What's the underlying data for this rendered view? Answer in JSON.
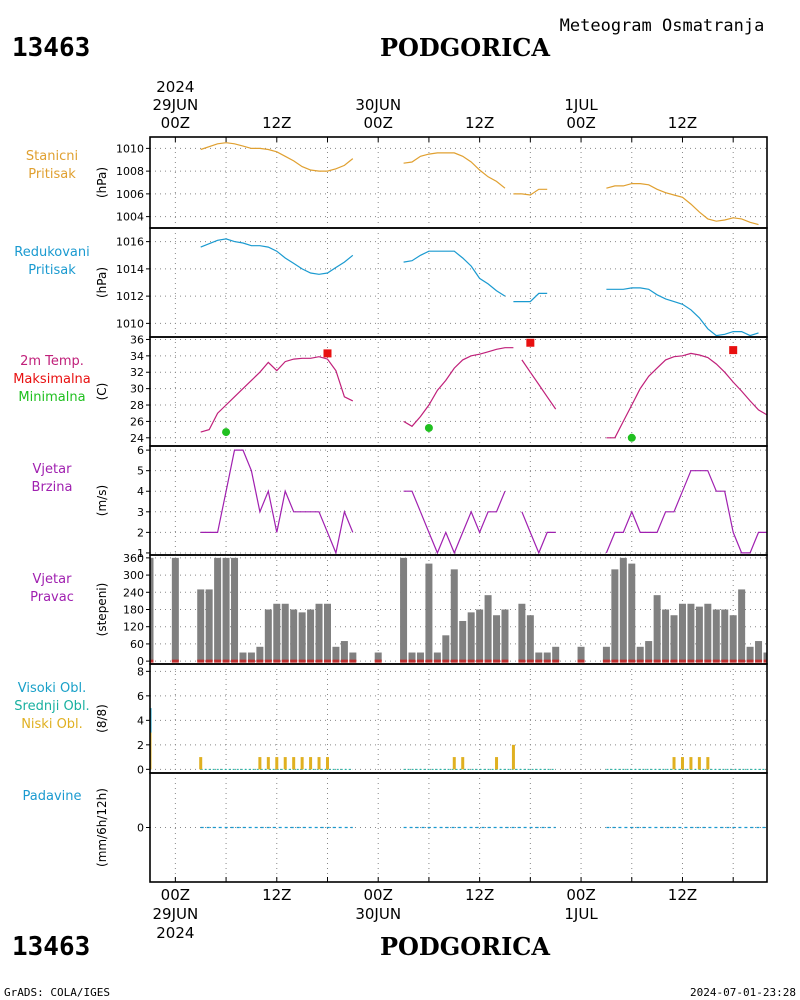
{
  "header": {
    "station_id": "13463",
    "station_name": "PODGORICA",
    "subtitle": "Meteogram Osmatranja"
  },
  "footer": {
    "credit": "GrADS: COLA/IGES",
    "timestamp": "2024-07-01-23:28"
  },
  "time_axis": {
    "year": "2024",
    "ticks": [
      {
        "t": 0,
        "hour": "00Z",
        "date": "29JUN"
      },
      {
        "t": 12,
        "hour": "12Z",
        "date": ""
      },
      {
        "t": 24,
        "hour": "00Z",
        "date": "30JUN"
      },
      {
        "t": 36,
        "hour": "12Z",
        "date": ""
      },
      {
        "t": 48,
        "hour": "00Z",
        "date": "1JUL"
      },
      {
        "t": 60,
        "hour": "12Z",
        "date": ""
      }
    ],
    "range_hours": [
      -3,
      70
    ]
  },
  "colors": {
    "station_pressure": "#e0a030",
    "reduced_pressure": "#1a9ad0",
    "temperature": "#c0207a",
    "tmax": "#e81010",
    "tmin": "#20c020",
    "wind": "#a020b0",
    "dir_bar": "#808080",
    "dir_base": "#c03030",
    "cloud_high": "#18a0c8",
    "cloud_mid": "#18b0a0",
    "cloud_low": "#e0b020",
    "precip": "#1a9ad0"
  },
  "chart_data": [
    {
      "id": "station_pressure",
      "type": "line",
      "label_lines": [
        "Stanicni",
        "Pritisak"
      ],
      "unit": "(hPa)",
      "yticks": [
        1004,
        1006,
        1008,
        1010
      ],
      "ylim": [
        1003,
        1011
      ],
      "series": [
        {
          "x": [
            3,
            5,
            6,
            7,
            8,
            9,
            10,
            11,
            12,
            13,
            14,
            15,
            16,
            17,
            18,
            19,
            20,
            21
          ],
          "y": [
            1009.9,
            1010.4,
            1010.5,
            1010.4,
            1010.2,
            1010.0,
            1010.0,
            1009.9,
            1009.7,
            1009.3,
            1008.9,
            1008.4,
            1008.1,
            1008.0,
            1008.0,
            1008.2,
            1008.5,
            1009.1
          ]
        },
        {
          "x": [
            27,
            28,
            29,
            30,
            31,
            32,
            33,
            34,
            35,
            36,
            37,
            38,
            39
          ],
          "y": [
            1008.7,
            1008.8,
            1009.3,
            1009.5,
            1009.6,
            1009.6,
            1009.6,
            1009.3,
            1008.8,
            1008.1,
            1007.5,
            1007.1,
            1006.5
          ]
        },
        {
          "x": [
            40,
            41,
            42,
            43,
            44
          ],
          "y": [
            1006.0,
            1006.0,
            1005.9,
            1006.4,
            1006.4
          ]
        },
        {
          "x": [
            51,
            52,
            53,
            54,
            55,
            56,
            57,
            58,
            59,
            60,
            61,
            62,
            63,
            64,
            65,
            66,
            67,
            68,
            69
          ],
          "y": [
            1006.5,
            1006.7,
            1006.7,
            1006.9,
            1006.9,
            1006.8,
            1006.4,
            1006.1,
            1005.9,
            1005.7,
            1005.1,
            1004.4,
            1003.8,
            1003.6,
            1003.7,
            1003.9,
            1003.8,
            1003.5,
            1003.3
          ]
        }
      ]
    },
    {
      "id": "reduced_pressure",
      "type": "line",
      "label_lines": [
        "Redukovani",
        "Pritisak"
      ],
      "unit": "(hPa)",
      "yticks": [
        1010,
        1012,
        1014,
        1016
      ],
      "ylim": [
        1009,
        1017
      ],
      "series": [
        {
          "x": [
            3,
            5,
            6,
            7,
            8,
            9,
            10,
            11,
            12,
            13,
            14,
            15,
            16,
            17,
            18,
            19,
            20,
            21
          ],
          "y": [
            1015.6,
            1016.1,
            1016.2,
            1016.0,
            1015.9,
            1015.7,
            1015.7,
            1015.6,
            1015.3,
            1014.8,
            1014.4,
            1014.0,
            1013.7,
            1013.6,
            1013.7,
            1014.1,
            1014.5,
            1015.0
          ]
        },
        {
          "x": [
            27,
            28,
            29,
            30,
            31,
            32,
            33,
            34,
            35,
            36,
            37,
            38,
            39
          ],
          "y": [
            1014.5,
            1014.6,
            1015.0,
            1015.3,
            1015.3,
            1015.3,
            1015.3,
            1014.8,
            1014.2,
            1013.3,
            1012.9,
            1012.4,
            1012.0
          ]
        },
        {
          "x": [
            40,
            41,
            42,
            43,
            44
          ],
          "y": [
            1011.6,
            1011.6,
            1011.6,
            1012.2,
            1012.2
          ]
        },
        {
          "x": [
            51,
            52,
            53,
            54,
            55,
            56,
            57,
            58,
            59,
            60,
            61,
            62,
            63,
            64,
            65,
            66,
            67,
            68,
            69
          ],
          "y": [
            1012.5,
            1012.5,
            1012.5,
            1012.6,
            1012.6,
            1012.5,
            1012.1,
            1011.8,
            1011.6,
            1011.4,
            1011.0,
            1010.4,
            1009.6,
            1009.1,
            1009.2,
            1009.4,
            1009.4,
            1009.1,
            1009.3
          ]
        }
      ]
    },
    {
      "id": "temperature",
      "type": "line",
      "label_lines": [
        "2m Temp.",
        "Maksimalna",
        "Minimalna"
      ],
      "unit": "(C)",
      "yticks": [
        24,
        26,
        28,
        30,
        32,
        34,
        36
      ],
      "ylim": [
        23,
        36.3
      ],
      "series": [
        {
          "x": [
            3,
            4,
            5,
            6,
            7,
            8,
            9,
            10,
            11,
            12,
            13,
            14,
            15,
            16,
            17,
            18,
            19,
            20,
            21
          ],
          "y": [
            24.7,
            25.0,
            27.0,
            28.0,
            29.0,
            30.0,
            31.0,
            32.0,
            33.2,
            32.2,
            33.3,
            33.6,
            33.7,
            33.7,
            33.9,
            33.6,
            32.2,
            29.0,
            28.5
          ]
        },
        {
          "x": [
            27,
            28,
            29,
            30,
            31,
            32,
            33,
            34,
            35,
            36,
            37,
            38,
            39,
            40
          ],
          "y": [
            26.0,
            25.4,
            26.6,
            28.0,
            29.8,
            31.0,
            32.5,
            33.5,
            34.0,
            34.2,
            34.5,
            34.8,
            35.0,
            35.0
          ]
        },
        {
          "x": [
            41,
            42,
            43,
            44,
            45
          ],
          "y": [
            33.5,
            32.0,
            30.5,
            29.0,
            27.5
          ]
        },
        {
          "x": [
            51,
            52,
            53,
            54,
            55,
            56,
            57,
            58,
            59,
            60,
            61,
            62,
            63,
            64,
            65,
            66,
            67,
            68,
            69,
            70
          ],
          "y": [
            24.0,
            24.0,
            26.0,
            28.0,
            30.0,
            31.5,
            32.5,
            33.5,
            33.9,
            34.0,
            34.3,
            34.1,
            33.8,
            33.0,
            32.0,
            30.8,
            29.7,
            28.5,
            27.4,
            26.8
          ]
        }
      ],
      "tmax": [
        {
          "x": 18,
          "y": 34.3
        },
        {
          "x": 42,
          "y": 35.6
        },
        {
          "x": 66,
          "y": 34.7
        }
      ],
      "tmin": [
        {
          "x": 6,
          "y": 24.7
        },
        {
          "x": 30,
          "y": 25.2
        },
        {
          "x": 54,
          "y": 24.0
        }
      ]
    },
    {
      "id": "wind_speed",
      "type": "line",
      "label_lines": [
        "Vjetar",
        "Brzina"
      ],
      "unit": "(m/s)",
      "yticks": [
        1,
        2,
        3,
        4,
        5,
        6
      ],
      "ylim": [
        0.9,
        6.2
      ],
      "series": [
        {
          "x": [
            3,
            4,
            5,
            6,
            7,
            8,
            9,
            10,
            11,
            12,
            13,
            14,
            15,
            16,
            17,
            18,
            19,
            20,
            21
          ],
          "y": [
            2,
            2,
            2,
            4,
            6,
            6,
            5,
            3,
            4,
            2,
            4,
            3,
            3,
            3,
            3,
            2,
            1,
            3,
            2
          ]
        },
        {
          "x": [
            27,
            28,
            29,
            30,
            31,
            32,
            33,
            34,
            35,
            36,
            37,
            38,
            39
          ],
          "y": [
            4,
            4,
            3,
            2,
            1,
            2,
            1,
            2,
            3,
            2,
            3,
            3,
            4
          ]
        },
        {
          "x": [
            41,
            42,
            43,
            44,
            45
          ],
          "y": [
            3,
            2,
            1,
            2,
            2
          ]
        },
        {
          "x": [
            51,
            52,
            53,
            54,
            55,
            56,
            57,
            58,
            59,
            60,
            61,
            62,
            63,
            64,
            65,
            66,
            67,
            68,
            69,
            70
          ],
          "y": [
            1,
            2,
            2,
            3,
            2,
            2,
            2,
            3,
            3,
            4,
            5,
            5,
            5,
            4,
            4,
            2,
            1,
            1,
            2,
            2
          ]
        }
      ]
    },
    {
      "id": "wind_direction",
      "type": "bar",
      "label_lines": [
        "Vjetar",
        "Pravac"
      ],
      "unit": "(stepeni)",
      "yticks": [
        0,
        60,
        120,
        180,
        240,
        300,
        360
      ],
      "ylim": [
        -10,
        370
      ],
      "x": [
        -3,
        0,
        3,
        4,
        5,
        6,
        7,
        8,
        9,
        10,
        11,
        12,
        13,
        14,
        15,
        16,
        17,
        18,
        19,
        20,
        21,
        24,
        27,
        28,
        29,
        30,
        31,
        32,
        33,
        34,
        35,
        36,
        37,
        38,
        39,
        41,
        42,
        43,
        44,
        45,
        48,
        51,
        52,
        53,
        54,
        55,
        56,
        57,
        58,
        59,
        60,
        61,
        62,
        63,
        64,
        65,
        66,
        67,
        68,
        69,
        70
      ],
      "values": [
        360,
        360,
        250,
        250,
        360,
        360,
        360,
        30,
        30,
        50,
        180,
        200,
        200,
        180,
        170,
        180,
        200,
        200,
        50,
        70,
        30,
        30,
        360,
        30,
        30,
        340,
        30,
        90,
        320,
        140,
        170,
        180,
        230,
        160,
        180,
        200,
        160,
        30,
        30,
        50,
        50,
        50,
        320,
        360,
        340,
        50,
        70,
        230,
        180,
        160,
        200,
        200,
        190,
        200,
        180,
        180,
        160,
        250,
        50,
        70,
        30
      ]
    },
    {
      "id": "clouds",
      "type": "bar",
      "label_lines": [
        "Visoki Obl.",
        "Srednji Obl.",
        "Niski Obl."
      ],
      "unit": "(8/8)",
      "yticks": [
        0,
        2,
        4,
        6,
        8
      ],
      "ylim": [
        -0.3,
        8.6
      ],
      "low_x": [
        3,
        10,
        11,
        12,
        13,
        14,
        15,
        16,
        17,
        18,
        33,
        34,
        38,
        40,
        59,
        60,
        61,
        62,
        63
      ],
      "low_values": [
        1,
        1,
        1,
        1,
        1,
        1,
        1,
        1,
        1,
        1,
        1,
        1,
        1,
        2,
        1,
        1,
        1,
        1,
        1
      ],
      "high_x": [
        -3
      ],
      "high_values": [
        5
      ]
    },
    {
      "id": "precipitation",
      "type": "line",
      "label_lines": [
        "Padavine"
      ],
      "unit": "(mm/6h/12h)",
      "yticks": [
        0
      ],
      "ylim": [
        -5,
        5
      ],
      "series": [
        {
          "x": [
            3,
            21
          ],
          "y": [
            0,
            0
          ]
        },
        {
          "x": [
            27,
            45
          ],
          "y": [
            0,
            0
          ]
        },
        {
          "x": [
            51,
            70
          ],
          "y": [
            0,
            0
          ]
        }
      ]
    }
  ]
}
